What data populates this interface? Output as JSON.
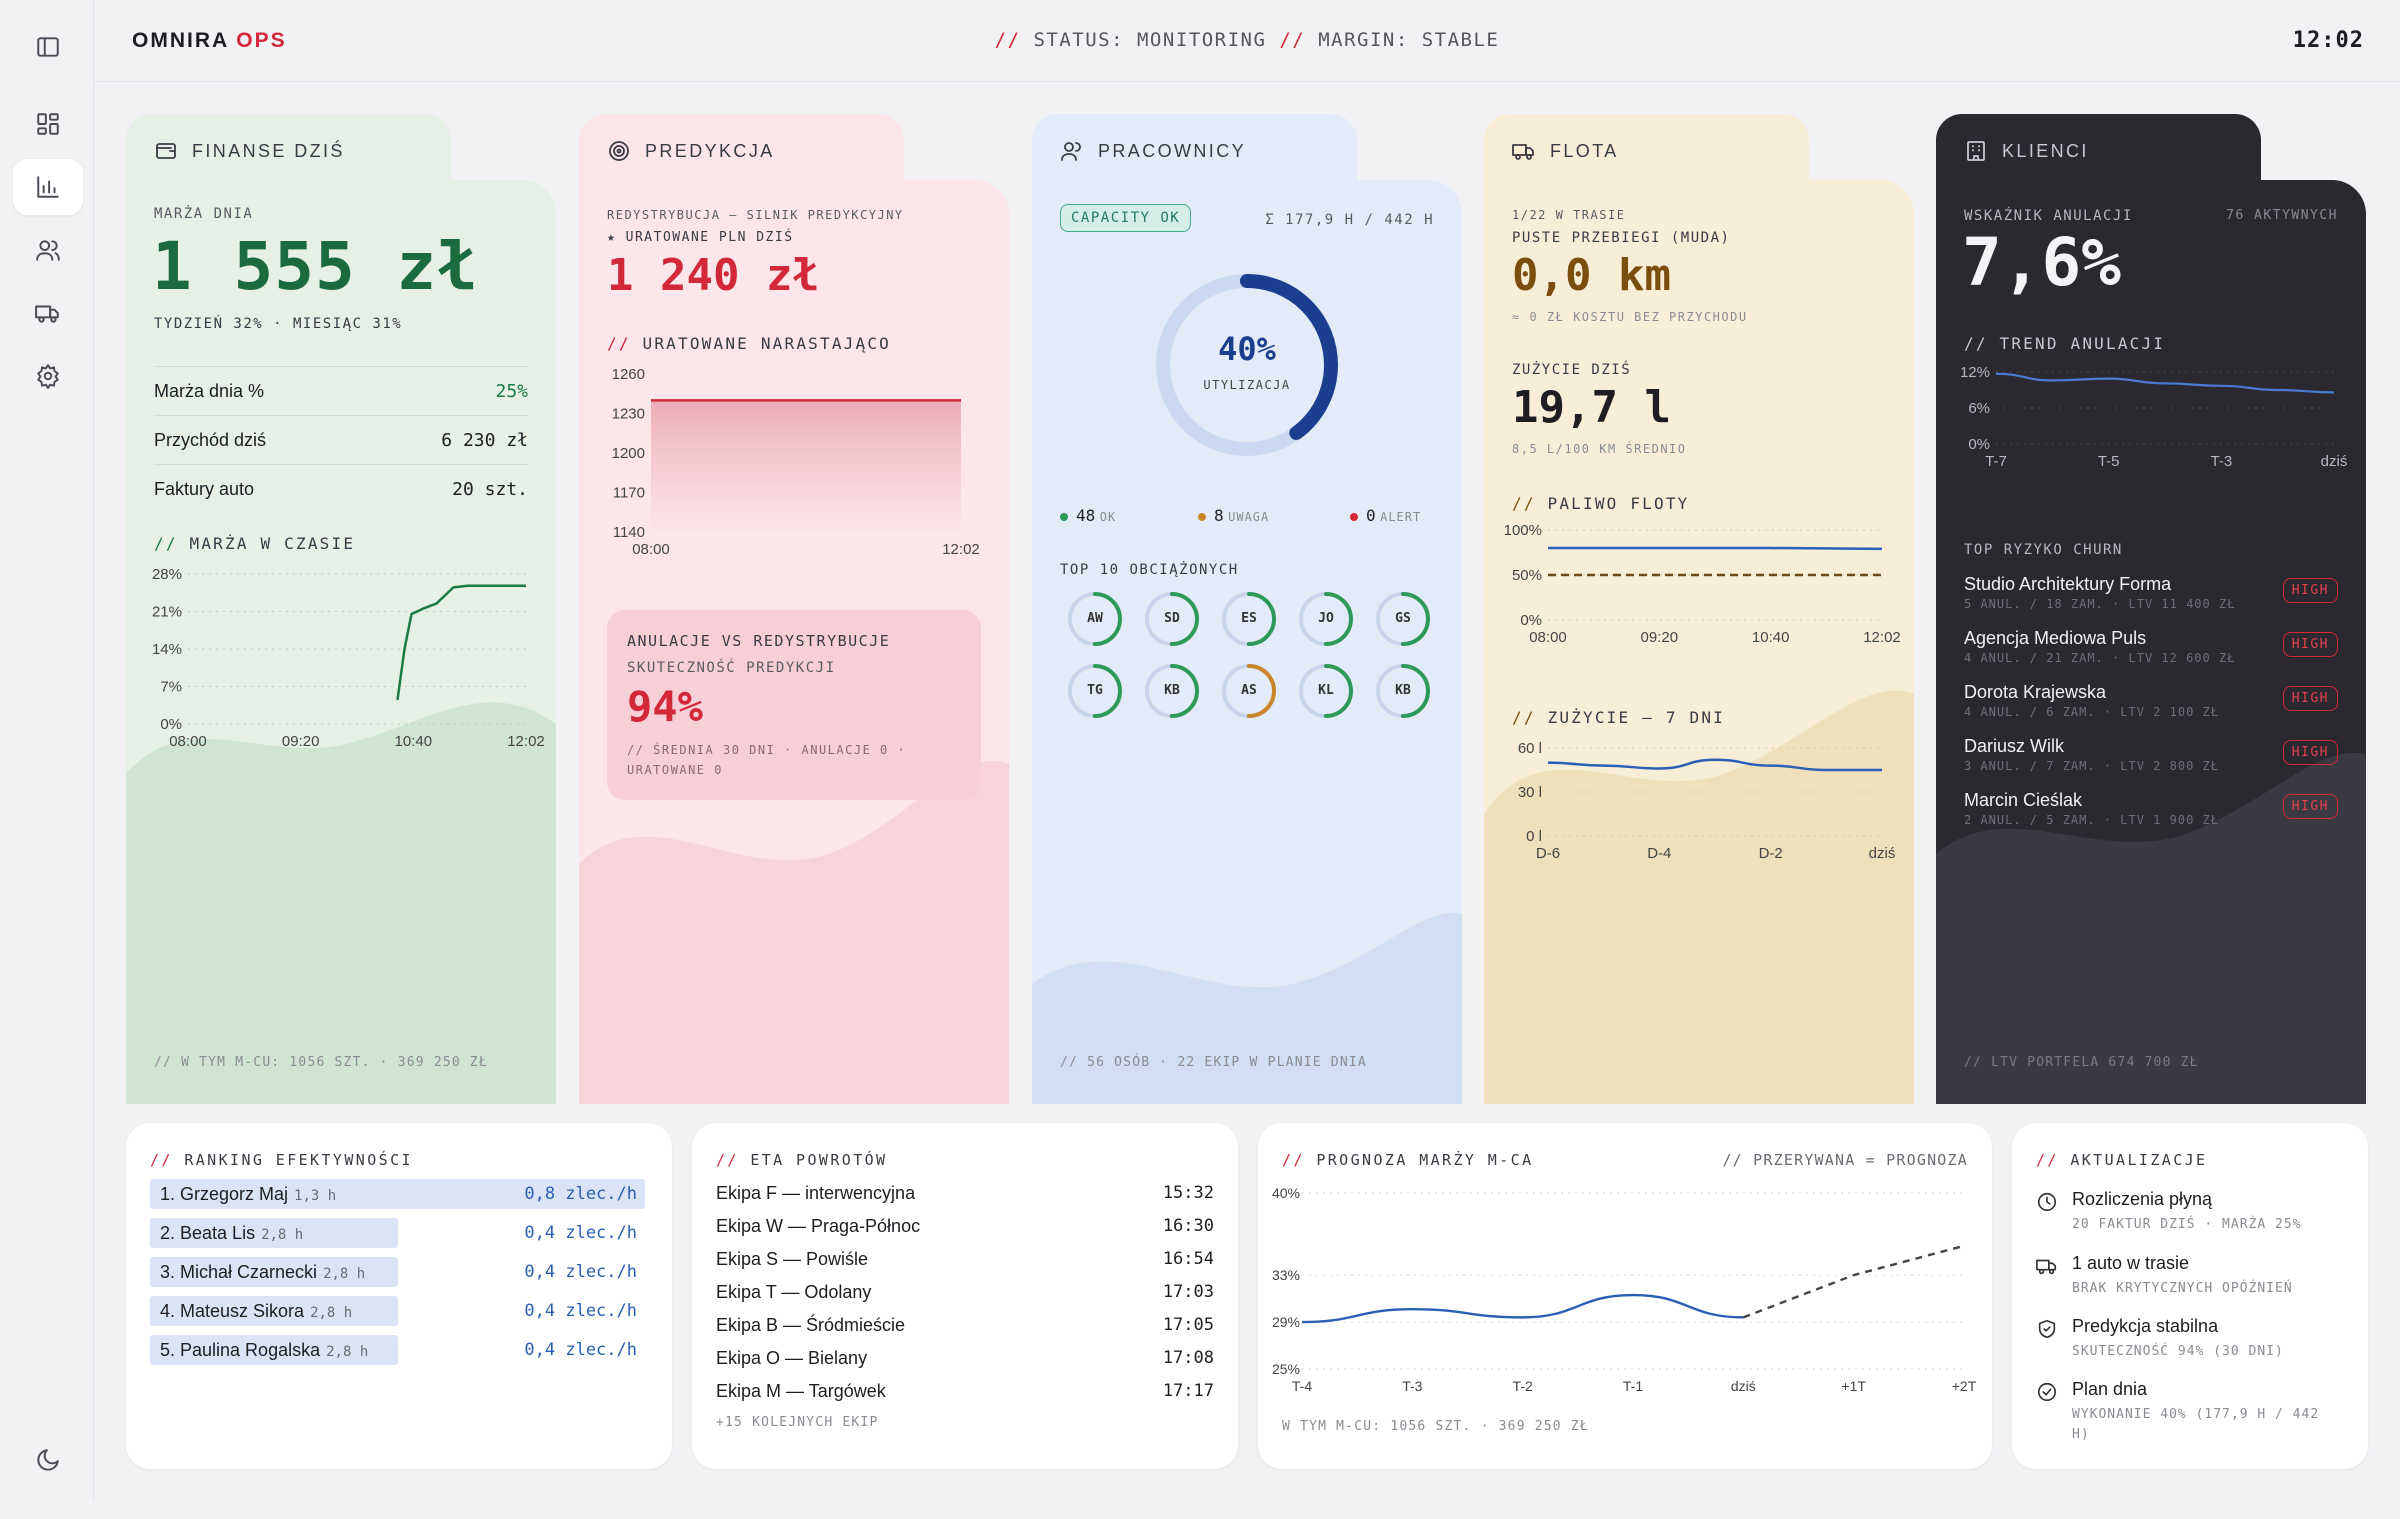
{
  "header": {
    "brand_main": "OMNIRA",
    "brand_accent": "OPS",
    "status_sep1": "//",
    "status_text1": "STATUS: MONITORING",
    "status_sep2": "//",
    "status_text2": "MARGIN: STABLE",
    "clock": "12:02"
  },
  "sidebar": {
    "items": [
      "dashboard-icon",
      "bar-chart-icon",
      "users-icon",
      "truck-icon",
      "gear-icon"
    ],
    "active": "bar-chart-icon",
    "bottom": "moon-icon"
  },
  "finanse": {
    "tab": "FINANSE DZIŚ",
    "label": "MARŻA DNIA",
    "value": "1 555 zł",
    "sub": "TYDZIEŃ 32% · MIESIĄC 31%",
    "rows": [
      {
        "k": "Marża dnia %",
        "v": "25%"
      },
      {
        "k": "Przychód dziś",
        "v": "6 230 zł"
      },
      {
        "k": "Faktury auto",
        "v": "20 szt."
      }
    ],
    "chart_title_prefix": "//",
    "chart_title": "MARŻA W CZASIE",
    "footer": "// W TYM M-CU: 1056 SZT. · 369 250 ZŁ"
  },
  "predykcja": {
    "tab": "PREDYKCJA",
    "label1": "REDYSTRYBUCJA — SILNIK PREDYKCYJNY",
    "label2": "★ URATOWANE PLN DZIŚ",
    "value": "1 240 zł",
    "chart_title_prefix": "//",
    "chart_title": "URATOWANE NARASTAJĄCO",
    "box_title": "ANULACJE VS REDYSTRYBUCJE",
    "box_label": "SKUTECZNOŚĆ PREDYKCJI",
    "box_value": "94%",
    "box_note": "// ŚREDNIA 30 DNI · ANULACJE 0 · URATOWANE 0"
  },
  "pracownicy": {
    "tab": "PRACOWNICY",
    "badge": "CAPACITY OK",
    "hours": "Σ 177,9 H / 442 H",
    "donut_value": "40%",
    "donut_label": "UTYLIZACJA",
    "utilization": 0.4,
    "legend": [
      {
        "count": "48",
        "label": "OK",
        "color": "#2e9a5a"
      },
      {
        "count": "8",
        "label": "UWAGA",
        "color": "#c7862a"
      },
      {
        "count": "0",
        "label": "ALERT",
        "color": "#d2283a"
      }
    ],
    "top_title": "TOP 10 OBCIĄŻONYCH",
    "workers": [
      {
        "initials": "AW",
        "load": 0.5,
        "color": "#2e9a5a"
      },
      {
        "initials": "SD",
        "load": 0.5,
        "color": "#2e9a5a"
      },
      {
        "initials": "ES",
        "load": 0.5,
        "color": "#2e9a5a"
      },
      {
        "initials": "JO",
        "load": 0.5,
        "color": "#2e9a5a"
      },
      {
        "initials": "GS",
        "load": 0.5,
        "color": "#2e9a5a"
      },
      {
        "initials": "TG",
        "load": 0.5,
        "color": "#2e9a5a"
      },
      {
        "initials": "KB",
        "load": 0.5,
        "color": "#2e9a5a"
      },
      {
        "initials": "AS",
        "load": 0.5,
        "color": "#c7862a"
      },
      {
        "initials": "KL",
        "load": 0.5,
        "color": "#2e9a5a"
      },
      {
        "initials": "KB",
        "load": 0.5,
        "color": "#2e9a5a"
      }
    ],
    "footer": "// 56 OSÓB · 22 EKIP W PLANIE DNIA"
  },
  "flota": {
    "tab": "FLOTA",
    "label1": "1/22 W TRASIE",
    "label2": "PUSTE PRZEBIEGI (MUDA)",
    "value1": "0,0 km",
    "note1": "≈ 0 ZŁ KOSZTU BEZ PRZYCHODU",
    "label3": "ZUŻYCIE DZIŚ",
    "value2": "19,7 l",
    "note2": "8,5 L/100 KM ŚREDNIO",
    "chart1_prefix": "//",
    "chart1_title": "PALIWO FLOTY",
    "chart2_prefix": "//",
    "chart2_title": "ZUŻYCIE — 7 DNI"
  },
  "klienci": {
    "tab": "KLIENCI",
    "label": "WSKAŹNIK ANULACJI",
    "active": "76 AKTYWNYCH",
    "value": "7,6%",
    "chart_title": "// TREND ANULACJI",
    "churn_title": "TOP RYZYKO CHURN",
    "churn": [
      {
        "name": "Studio Architektury Forma",
        "detail": "5 ANUL. / 18 ZAM. · LTV 11 400 ZŁ",
        "badge": "HIGH"
      },
      {
        "name": "Agencja Mediowa Puls",
        "detail": "4 ANUL. / 21 ZAM. · LTV 12 600 ZŁ",
        "badge": "HIGH"
      },
      {
        "name": "Dorota Krajewska",
        "detail": "4 ANUL. / 6 ZAM. · LTV 2 100 ZŁ",
        "badge": "HIGH"
      },
      {
        "name": "Dariusz Wilk",
        "detail": "3 ANUL. / 7 ZAM. · LTV 2 800 ZŁ",
        "badge": "HIGH"
      },
      {
        "name": "Marcin Cieślak",
        "detail": "2 ANUL. / 5 ZAM. · LTV 1 900 ZŁ",
        "badge": "HIGH"
      }
    ],
    "footer": "// LTV PORTFELA 674 700 ZŁ"
  },
  "ranking": {
    "prefix": "//",
    "title": "RANKING EFEKTYWNOŚCI",
    "rows": [
      {
        "name": "1. Grzegorz Maj",
        "hours": "1,3 h",
        "rate": "0,8 zlec./h",
        "share": 1.0
      },
      {
        "name": "2. Beata Lis",
        "hours": "2,8 h",
        "rate": "0,4 zlec./h",
        "share": 0.5
      },
      {
        "name": "3. Michał Czarnecki",
        "hours": "2,8 h",
        "rate": "0,4 zlec./h",
        "share": 0.5
      },
      {
        "name": "4. Mateusz Sikora",
        "hours": "2,8 h",
        "rate": "0,4 zlec./h",
        "share": 0.5
      },
      {
        "name": "5. Paulina Rogalska",
        "hours": "2,8 h",
        "rate": "0,4 zlec./h",
        "share": 0.5
      }
    ]
  },
  "eta": {
    "prefix": "//",
    "title": "ETA POWROTÓW",
    "rows": [
      {
        "name": "Ekipa F — interwencyjna",
        "time": "15:32"
      },
      {
        "name": "Ekipa W — Praga-Północ",
        "time": "16:30"
      },
      {
        "name": "Ekipa S — Powiśle",
        "time": "16:54"
      },
      {
        "name": "Ekipa T — Odolany",
        "time": "17:03"
      },
      {
        "name": "Ekipa B — Śródmieście",
        "time": "17:05"
      },
      {
        "name": "Ekipa O — Bielany",
        "time": "17:08"
      },
      {
        "name": "Ekipa M — Targówek",
        "time": "17:17"
      }
    ],
    "more": "+15 KOLEJNYCH EKIP"
  },
  "prognoza": {
    "prefix": "//",
    "title": "PROGNOZA MARŻY M-CA",
    "legend": "// PRZERYWANA = PROGNOZA",
    "footer": "W TYM M-CU: 1056 SZT. · 369 250 ZŁ"
  },
  "aktualizacje": {
    "prefix": "//",
    "title": "AKTUALIZACJE",
    "items": [
      {
        "icon": "clock-icon",
        "title": "Rozliczenia płyną",
        "sub": "20 FAKTUR DZIŚ · MARŻA 25%"
      },
      {
        "icon": "truck-icon",
        "title": "1 auto w trasie",
        "sub": "BRAK KRYTYCZNYCH OPÓŹNIEŃ"
      },
      {
        "icon": "shield-icon",
        "title": "Predykcja stabilna",
        "sub": "SKUTECZNOŚĆ 94% (30 DNI)"
      },
      {
        "icon": "check-circle-icon",
        "title": "Plan dnia",
        "sub": "WYKONANIE 40% (177,9 H / 442 H)"
      }
    ]
  },
  "chart_data": [
    {
      "id": "marza",
      "type": "line",
      "x_ticks": [
        "08:00",
        "09:20",
        "10:40",
        "12:02"
      ],
      "y_ticks": [
        "28%",
        "21%",
        "14%",
        "7%",
        "0%"
      ],
      "ylim": [
        0,
        28
      ],
      "xlim": [
        0,
        242
      ],
      "x": [
        150,
        155,
        160,
        168,
        178,
        190,
        200,
        220,
        242
      ],
      "values": [
        4.5,
        14,
        20.5,
        21.5,
        22.5,
        25.5,
        25.8,
        25.8,
        25.8
      ],
      "color": "#1c7a45"
    },
    {
      "id": "uratowane",
      "type": "area",
      "x_ticks": [
        "08:00",
        "12:02"
      ],
      "y_ticks": [
        "1260",
        "1230",
        "1200",
        "1170",
        "1140"
      ],
      "ylim": [
        1140,
        1260
      ],
      "values": [
        1240,
        1240
      ],
      "color": "#d2283a"
    },
    {
      "id": "paliwo",
      "type": "line",
      "x_ticks": [
        "08:00",
        "09:20",
        "10:40",
        "12:02"
      ],
      "y_ticks": [
        "100%",
        "50%",
        "0%"
      ],
      "ylim": [
        0,
        100
      ],
      "series": [
        {
          "values": [
            80,
            80,
            80,
            79
          ],
          "style": "solid",
          "color": "#2a5fb5"
        },
        {
          "values": [
            50,
            50,
            50,
            50
          ],
          "style": "dashed",
          "color": "#6b4a1c"
        }
      ]
    },
    {
      "id": "zuzycie7",
      "type": "line",
      "x_ticks": [
        "D-6",
        "D-4",
        "D-2",
        "dziś"
      ],
      "y_ticks": [
        "60 l",
        "30 l",
        "0 l"
      ],
      "ylim": [
        0,
        60
      ],
      "values": [
        50,
        48,
        46,
        52,
        48,
        45,
        45
      ],
      "color": "#2a5fb5"
    },
    {
      "id": "trend_anulacji",
      "type": "line",
      "x_ticks": [
        "T-7",
        "T-5",
        "T-3",
        "dziś"
      ],
      "y_ticks": [
        "12%",
        "6%",
        "0%"
      ],
      "ylim": [
        0,
        12
      ],
      "values": [
        11.7,
        10.6,
        10.9,
        10.1,
        9.7,
        9.0,
        8.6
      ],
      "color": "#4a7ad6"
    },
    {
      "id": "prognoza_marzy",
      "type": "line",
      "x_ticks": [
        "T-4",
        "T-3",
        "T-2",
        "T-1",
        "dziś",
        "+1T",
        "+2T"
      ],
      "y_ticks": [
        "40%",
        "33%",
        "29%",
        "25%"
      ],
      "ylim": [
        25,
        40
      ],
      "series": [
        {
          "name": "actual",
          "values": [
            29,
            30.1,
            29.4,
            31.3,
            29.4
          ],
          "style": "solid",
          "color": "#2a5fb5"
        },
        {
          "name": "forecast",
          "values": [
            null,
            null,
            null,
            null,
            29.4,
            33,
            35.5
          ],
          "style": "dashed",
          "color": "#444"
        }
      ]
    }
  ]
}
